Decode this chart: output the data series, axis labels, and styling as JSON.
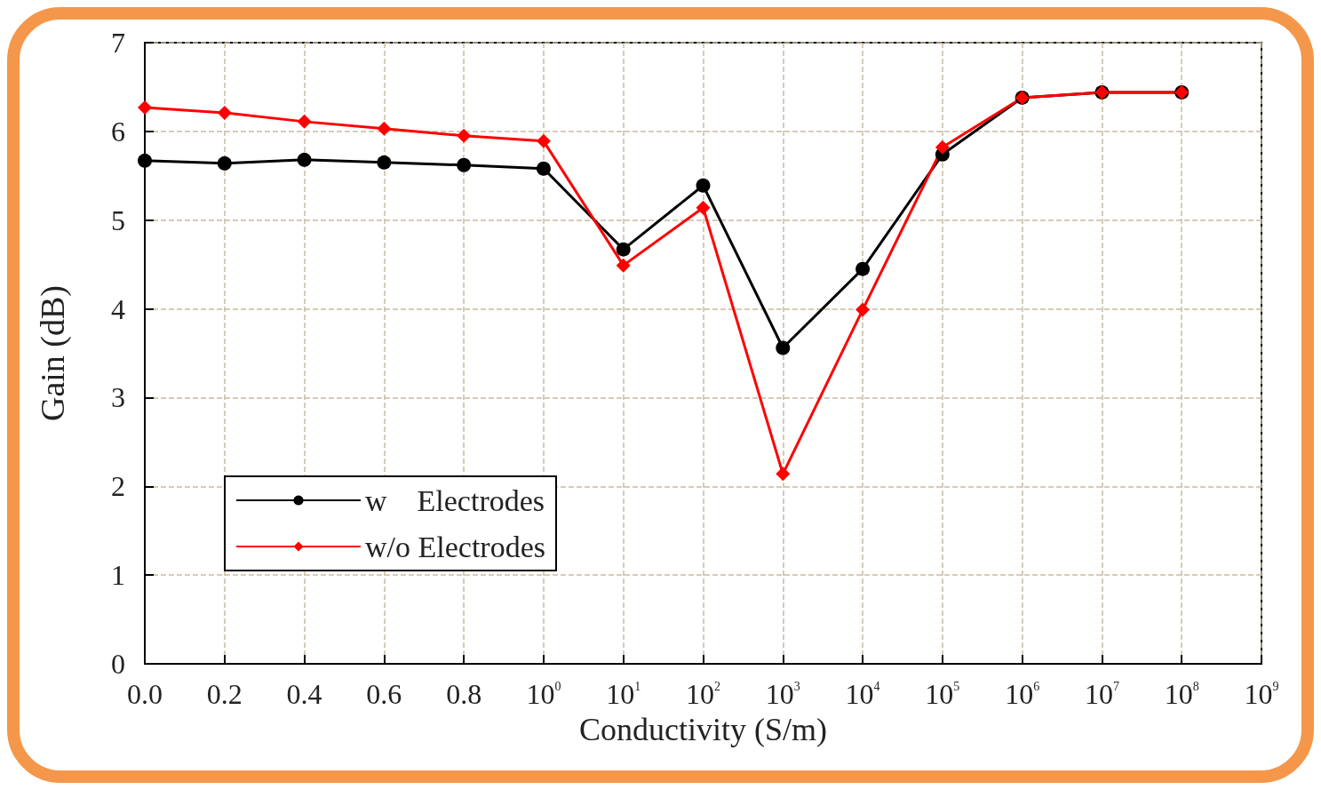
{
  "chart_data": {
    "type": "line",
    "xlabel": "Conductivity (S/m)",
    "ylabel": "Gain (dB)",
    "categories": [
      "0.0",
      "0.2",
      "0.4",
      "0.6",
      "0.8",
      "10$^{0}$",
      "10$^{1}$",
      "10$^{2}$",
      "10$^{3}$",
      "10$^{4}$",
      "10$^{5}$",
      "10$^{6}$",
      "10$^{7}$",
      "10$^{8}$",
      "10$^{9}$"
    ],
    "series": [
      {
        "name": "w    Electrodes",
        "color": "#000000",
        "marker": "circle",
        "values": [
          5.67,
          5.64,
          5.68,
          5.65,
          5.62,
          5.58,
          4.67,
          5.39,
          3.56,
          4.45,
          5.74,
          6.38,
          6.44,
          6.44,
          null
        ]
      },
      {
        "name": "w/o Electrodes",
        "color": "#ff0000",
        "marker": "diamond",
        "values": [
          6.27,
          6.21,
          6.11,
          6.03,
          5.95,
          5.89,
          4.49,
          5.14,
          2.14,
          3.99,
          5.82,
          6.38,
          6.44,
          6.44,
          null
        ]
      }
    ],
    "ylim": [
      0,
      7
    ],
    "yticks": [
      0,
      1,
      2,
      3,
      4,
      5,
      6,
      7
    ],
    "grid": true,
    "legend": "bottom left",
    "line_style": "solid"
  }
}
